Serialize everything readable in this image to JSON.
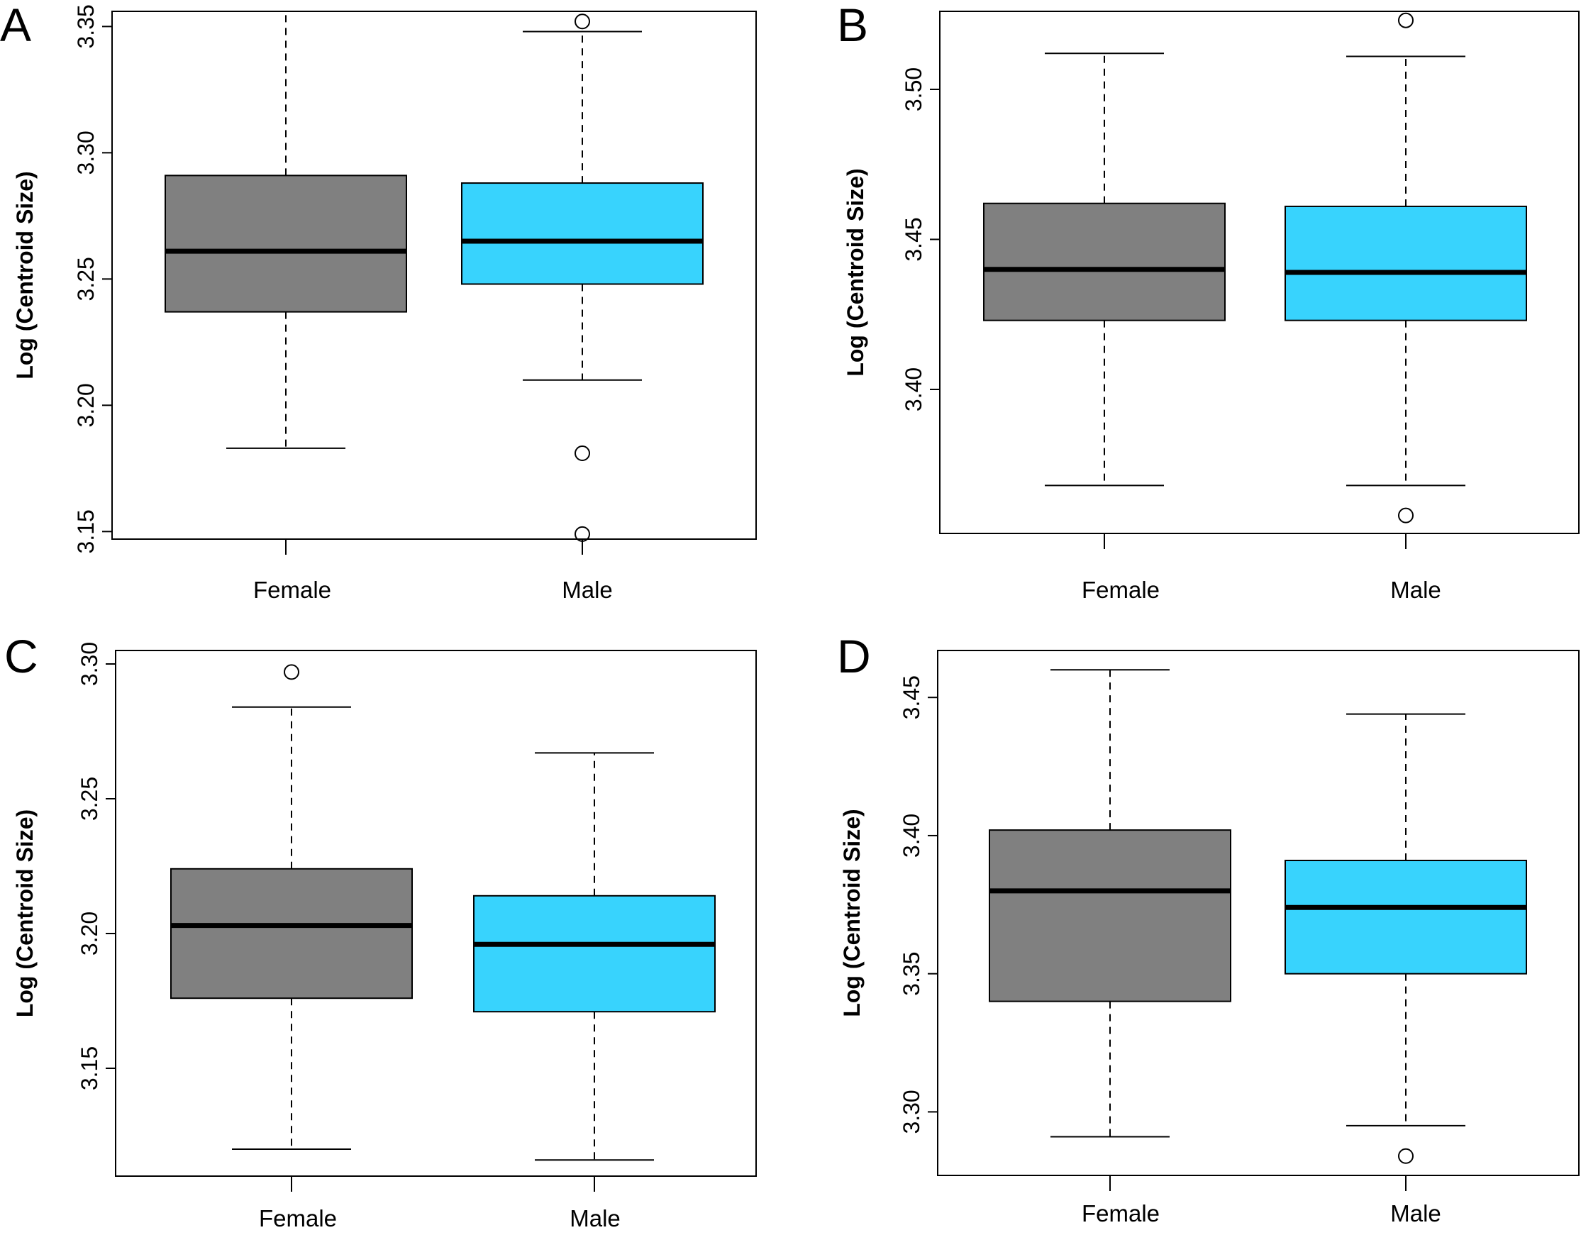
{
  "figure": {
    "colors": {
      "female_box": "#808080",
      "male_box": "#38d3fd",
      "median": "#000000",
      "frame": "#000000"
    }
  },
  "chart_data": [
    {
      "panel": "A",
      "type": "box",
      "categories": [
        "Female",
        "Male"
      ],
      "ylabel": "Log (Centroid Size)",
      "ylim": [
        3.147,
        3.356
      ],
      "yticks": [
        "3.15",
        "3.20",
        "3.25",
        "3.30",
        "3.35"
      ],
      "boxes": [
        {
          "category": "Female",
          "whisker_low": 3.183,
          "q1": 3.237,
          "median": 3.261,
          "q3": 3.291,
          "whisker_high": 3.356,
          "outliers": []
        },
        {
          "category": "Male",
          "whisker_low": 3.21,
          "q1": 3.248,
          "median": 3.265,
          "q3": 3.288,
          "whisker_high": 3.348,
          "outliers": [
            3.352,
            3.181,
            3.149
          ]
        }
      ]
    },
    {
      "panel": "B",
      "type": "box",
      "categories": [
        "Female",
        "Male"
      ],
      "ylabel": "Log (Centroid Size)",
      "ylim": [
        3.352,
        3.526
      ],
      "yticks": [
        "3.40",
        "3.45",
        "3.50"
      ],
      "boxes": [
        {
          "category": "Female",
          "whisker_low": 3.368,
          "q1": 3.423,
          "median": 3.44,
          "q3": 3.462,
          "whisker_high": 3.512,
          "outliers": []
        },
        {
          "category": "Male",
          "whisker_low": 3.368,
          "q1": 3.423,
          "median": 3.439,
          "q3": 3.461,
          "whisker_high": 3.511,
          "outliers": [
            3.523,
            3.358
          ]
        }
      ]
    },
    {
      "panel": "C",
      "type": "box",
      "categories": [
        "Female",
        "Male"
      ],
      "ylabel": "Log (Centroid Size)",
      "ylim": [
        3.11,
        3.305
      ],
      "yticks": [
        "3.15",
        "3.20",
        "3.25",
        "3.30"
      ],
      "boxes": [
        {
          "category": "Female",
          "whisker_low": 3.12,
          "q1": 3.176,
          "median": 3.203,
          "q3": 3.224,
          "whisker_high": 3.284,
          "outliers": [
            3.297
          ]
        },
        {
          "category": "Male",
          "whisker_low": 3.116,
          "q1": 3.171,
          "median": 3.196,
          "q3": 3.214,
          "whisker_high": 3.267,
          "outliers": []
        }
      ]
    },
    {
      "panel": "D",
      "type": "box",
      "categories": [
        "Female",
        "Male"
      ],
      "ylabel": "Log (Centroid Size)",
      "ylim": [
        3.277,
        3.467
      ],
      "yticks": [
        "3.30",
        "3.35",
        "3.40",
        "3.45"
      ],
      "boxes": [
        {
          "category": "Female",
          "whisker_low": 3.291,
          "q1": 3.34,
          "median": 3.38,
          "q3": 3.402,
          "whisker_high": 3.46,
          "outliers": []
        },
        {
          "category": "Male",
          "whisker_low": 3.295,
          "q1": 3.35,
          "median": 3.374,
          "q3": 3.391,
          "whisker_high": 3.444,
          "outliers": [
            3.284
          ]
        }
      ]
    }
  ]
}
